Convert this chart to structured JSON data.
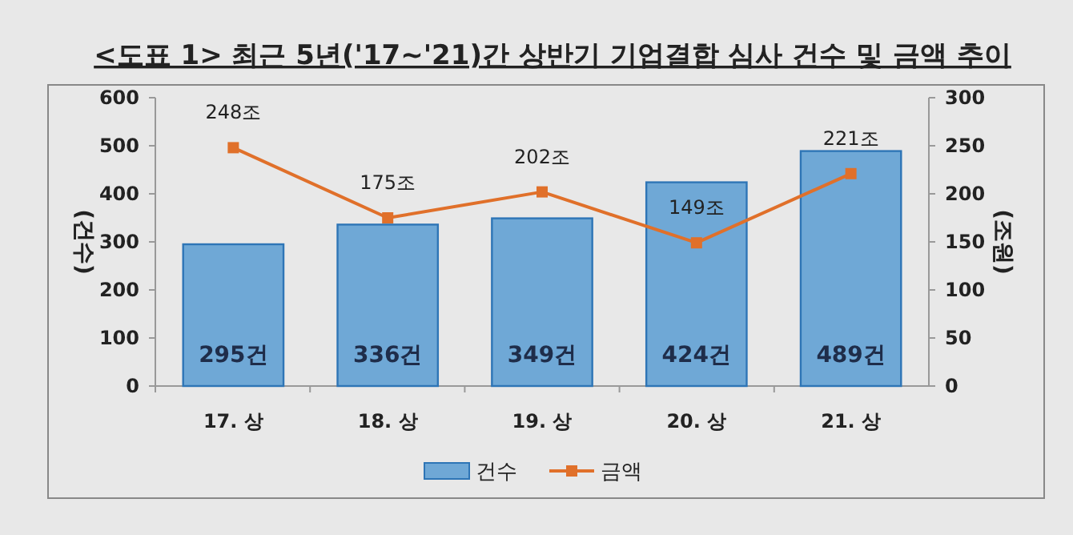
{
  "chart_data": {
    "type": "bar",
    "title": "<도표 1>   최근 5년('17~'21)간 상반기 기업결합 심사 건수 및 금액 추이",
    "categories": [
      "17. 상",
      "18. 상",
      "19. 상",
      "20. 상",
      "21. 상"
    ],
    "series": [
      {
        "name": "건수",
        "color": "#6fa8d6",
        "values": [
          295,
          336,
          349,
          424,
          489
        ],
        "value_labels": [
          "295건",
          "336건",
          "349건",
          "424건",
          "489건"
        ]
      },
      {
        "name": "금액",
        "type": "line",
        "axis": "y2",
        "color": "#e0702a",
        "values": [
          248,
          175,
          202,
          149,
          221
        ],
        "value_labels": [
          "248조",
          "175조",
          "202조",
          "149조",
          "221조"
        ],
        "marker": "square"
      }
    ],
    "ylabel": "(건수)",
    "y2label": "(조원)",
    "ylim": [
      0,
      600
    ],
    "yticks": [
      0,
      100,
      200,
      300,
      400,
      500,
      600
    ],
    "y2lim": [
      0,
      300
    ],
    "y2ticks": [
      0,
      50,
      100,
      150,
      200,
      250,
      300
    ],
    "grid": false,
    "legend": "bottom"
  }
}
